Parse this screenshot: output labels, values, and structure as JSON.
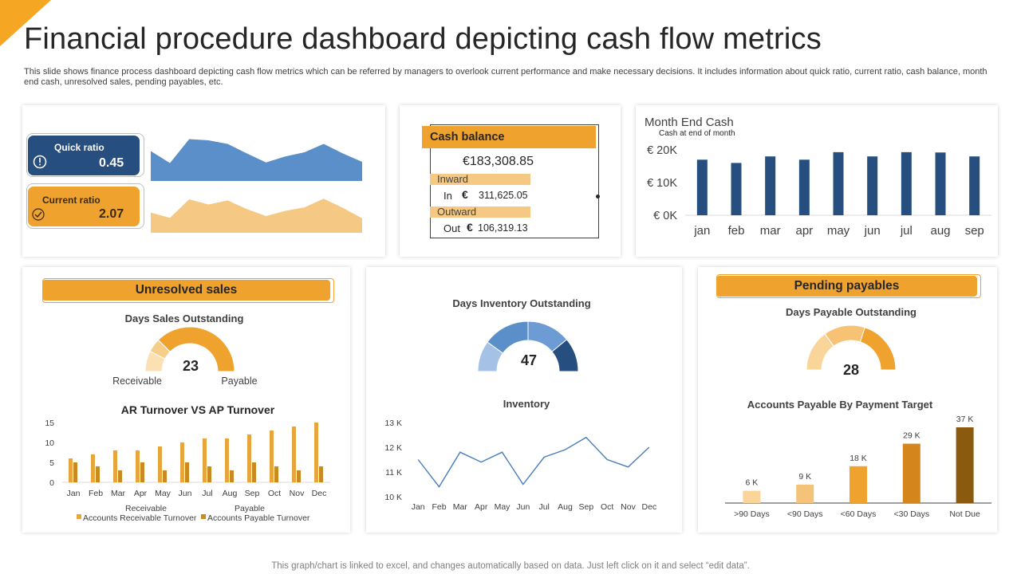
{
  "page": {
    "title": "Financial procedure dashboard depicting cash flow metrics",
    "subtitle": "This slide shows finance process dashboard depicting cash flow metrics which can be referred by managers to overlook current performance and make necessary decisions. It includes information about quick ratio, current ratio, cash balance, month end cash, unresolved sales, pending payables, etc.",
    "footer": "This graph/chart is linked to excel, and changes automatically based on data. Just left click on it and select “edit data”."
  },
  "colors": {
    "accent_orange": "#f0a22e",
    "navy": "#264e7e",
    "blue": "#5b8fc9",
    "light_orange": "#f5c983",
    "dark_gold": "#8a5a0f"
  },
  "ratios": {
    "quick_label": "Quick ratio",
    "quick_value": "0.45",
    "current_label": "Current ratio",
    "current_value": "2.07"
  },
  "cash_balance": {
    "title": "Cash balance",
    "total": "€183,308.85",
    "inward_label": "Inward",
    "in_label": "In",
    "in_symbol": "€",
    "in_value": "311,625.05",
    "outward_label": "Outward",
    "out_label": "Out",
    "out_symbol": "€",
    "out_value": "106,319.13"
  },
  "unresolved": {
    "header": "Unresolved sales",
    "gauge_title": "Days  Sales Outstanding",
    "gauge_value": "23",
    "gauge_left": "Receivable",
    "gauge_right": "Payable",
    "chart_title": "AR Turnover VS AP Turnover"
  },
  "inventory": {
    "gauge_title": "Days  Inventory Outstanding",
    "gauge_value": "47",
    "chart_title": "Inventory"
  },
  "payables": {
    "header": "Pending payables",
    "gauge_title": "Days  Payable Outstanding",
    "gauge_value": "28",
    "chart_title": "Accounts  Payable By Payment Target"
  },
  "chart_data": [
    {
      "id": "quick_ratio_area",
      "type": "area",
      "color": "#5b8fc9",
      "values": [
        5,
        3,
        7,
        6.8,
        6.2,
        4.6,
        3.1,
        4.1,
        4.8,
        6.2,
        4.6,
        3.2
      ]
    },
    {
      "id": "current_ratio_area",
      "type": "area",
      "color": "#f5c983",
      "values": [
        3.5,
        2.6,
        5.8,
        4.9,
        5.6,
        4.1,
        2.9,
        3.8,
        4.4,
        5.9,
        4.3,
        2.5
      ]
    },
    {
      "id": "month_end_cash",
      "type": "bar",
      "title": "Month End Cash",
      "subtitle": "Cash at end of month",
      "categories": [
        "jan",
        "feb",
        "mar",
        "apr",
        "may",
        "jun",
        "jul",
        "aug",
        "sep"
      ],
      "values": [
        17000,
        16000,
        18000,
        17000,
        19300,
        18000,
        19300,
        19200,
        18000
      ],
      "yticks": [
        "€ 20K",
        "€ 10K",
        "€ 0K"
      ],
      "ylim": [
        0,
        20000
      ],
      "color": "#264e7e"
    },
    {
      "id": "ar_ap_turnover",
      "type": "bar",
      "title": "AR Turnover VS AP Turnover",
      "categories": [
        "Jan",
        "Feb",
        "Mar",
        "Apr",
        "May",
        "Jun",
        "Jul",
        "Aug",
        "Sep",
        "Oct",
        "Nov",
        "Dec"
      ],
      "yticks": [
        "15",
        "10",
        "5",
        "0"
      ],
      "ylim": [
        0,
        15
      ],
      "series": [
        {
          "name": "Accounts Receivable Turnover",
          "color": "#e8a53c",
          "values": [
            6,
            7,
            8,
            8,
            9,
            10,
            11,
            11,
            12,
            13,
            14,
            15
          ]
        },
        {
          "name": "Accounts Payable Turnover",
          "color": "#c98a1f",
          "values": [
            5,
            4,
            3,
            5,
            3,
            5,
            4,
            3,
            5,
            4,
            3,
            4
          ]
        }
      ],
      "legend_top": [
        "Receivable",
        "Payable"
      ]
    },
    {
      "id": "inventory_line",
      "type": "line",
      "title": "Inventory",
      "categories": [
        "Jan",
        "Feb",
        "Mar",
        "Apr",
        "May",
        "Jun",
        "Jul",
        "Aug",
        "Sep",
        "Oct",
        "Nov",
        "Dec"
      ],
      "values": [
        11500,
        10400,
        11800,
        11400,
        11800,
        10500,
        11600,
        11900,
        12400,
        11500,
        11200,
        12000
      ],
      "yticks": [
        "13 K",
        "12 K",
        "11 K",
        "10 K"
      ],
      "ylim": [
        10000,
        13000
      ],
      "color": "#4a7ebb"
    },
    {
      "id": "payable_by_target",
      "type": "bar",
      "title": "Accounts  Payable By Payment Target",
      "categories": [
        ">90 Days",
        "<90 Days",
        "<60 Days",
        "<30 Days",
        "Not Due"
      ],
      "values": [
        6,
        9,
        18,
        29,
        37
      ],
      "labels": [
        "6 K",
        "9 K",
        "18 K",
        "29 K",
        "37 K"
      ],
      "colors": [
        "#fad59a",
        "#f5c27a",
        "#f0a22e",
        "#d4861c",
        "#8a5a0f"
      ]
    },
    {
      "id": "dso_gauge",
      "type": "pie",
      "value": 23,
      "segments": [
        {
          "value": 15,
          "color": "#fbe0b4"
        },
        {
          "value": 10,
          "color": "#f7cd8a"
        },
        {
          "value": 75,
          "color": "#f0a22e"
        }
      ]
    },
    {
      "id": "dio_gauge",
      "type": "pie",
      "value": 47,
      "segments": [
        {
          "value": 20,
          "color": "#a5c2e6"
        },
        {
          "value": 30,
          "color": "#5b8fc9"
        },
        {
          "value": 28,
          "color": "#6d9bd3"
        },
        {
          "value": 22,
          "color": "#264e7e"
        }
      ]
    },
    {
      "id": "dpo_gauge",
      "type": "pie",
      "value": 28,
      "segments": [
        {
          "value": 30,
          "color": "#fad59a"
        },
        {
          "value": 30,
          "color": "#f7c274"
        },
        {
          "value": 40,
          "color": "#f0a22e"
        }
      ]
    }
  ]
}
